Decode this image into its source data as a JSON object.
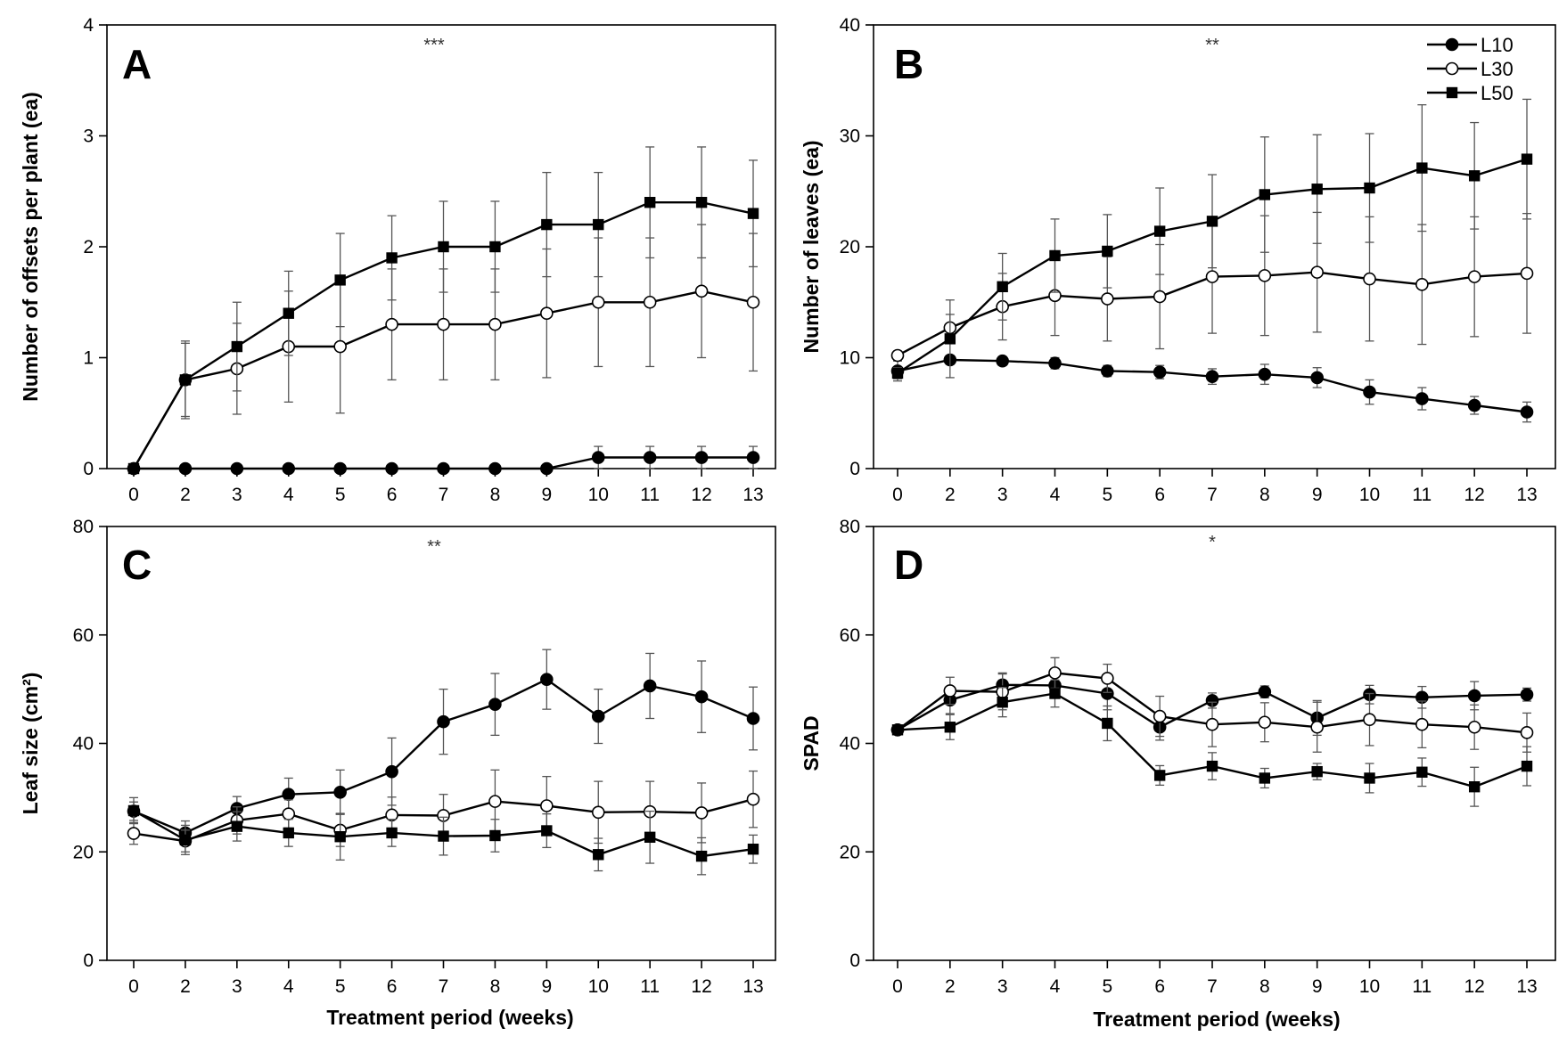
{
  "figure": {
    "xlabel": "Treatment period (weeks)",
    "legend": [
      {
        "name": "L10",
        "marker": "filled-circle"
      },
      {
        "name": "L30",
        "marker": "open-circle"
      },
      {
        "name": "L50",
        "marker": "filled-square"
      }
    ]
  },
  "chart_data": [
    {
      "type": "line",
      "panel": "A",
      "significance": "***",
      "xlabel": "Treatment period (weeks)",
      "ylabel": "Number of offsets per plant (ea)",
      "categories": [
        "0",
        "2",
        "3",
        "4",
        "5",
        "6",
        "7",
        "8",
        "9",
        "10",
        "11",
        "12",
        "13"
      ],
      "ylim": [
        0,
        4
      ],
      "yticks": [
        0,
        1,
        2,
        3,
        4
      ],
      "series": [
        {
          "name": "L10",
          "marker": "filled-circle",
          "values": [
            0,
            0,
            0,
            0,
            0,
            0,
            0,
            0,
            0,
            0.1,
            0.1,
            0.1,
            0.1
          ],
          "errors": [
            0,
            0,
            0,
            0,
            0,
            0,
            0,
            0,
            0,
            0.1,
            0.1,
            0.1,
            0.1
          ]
        },
        {
          "name": "L30",
          "marker": "open-circle",
          "values": [
            0,
            0.8,
            0.9,
            1.1,
            1.1,
            1.3,
            1.3,
            1.3,
            1.4,
            1.5,
            1.5,
            1.6,
            1.5
          ],
          "errors": [
            0,
            0.33,
            0.41,
            0.5,
            0.6,
            0.5,
            0.5,
            0.5,
            0.58,
            0.58,
            0.58,
            0.6,
            0.62
          ]
        },
        {
          "name": "L50",
          "marker": "filled-square",
          "values": [
            0,
            0.8,
            1.1,
            1.4,
            1.7,
            1.9,
            2.0,
            2.0,
            2.2,
            2.2,
            2.4,
            2.4,
            2.3
          ],
          "errors": [
            0,
            0.35,
            0.4,
            0.38,
            0.42,
            0.38,
            0.41,
            0.41,
            0.47,
            0.47,
            0.5,
            0.5,
            0.48
          ]
        }
      ]
    },
    {
      "type": "line",
      "panel": "B",
      "significance": "**",
      "xlabel": "Treatment period (weeks)",
      "ylabel": "Number of leaves (ea)",
      "categories": [
        "0",
        "2",
        "3",
        "4",
        "5",
        "6",
        "7",
        "8",
        "9",
        "10",
        "11",
        "12",
        "13"
      ],
      "ylim": [
        0,
        40
      ],
      "yticks": [
        0,
        10,
        20,
        30,
        40
      ],
      "series": [
        {
          "name": "L10",
          "marker": "filled-circle",
          "values": [
            8.8,
            9.8,
            9.7,
            9.5,
            8.8,
            8.7,
            8.3,
            8.5,
            8.2,
            6.9,
            6.3,
            5.7,
            5.1
          ],
          "errors": [
            0.9,
            0.4,
            0.4,
            0.5,
            0.5,
            0.6,
            0.7,
            0.9,
            0.9,
            1.1,
            1.0,
            0.8,
            0.9
          ]
        },
        {
          "name": "L30",
          "marker": "open-circle",
          "values": [
            10.2,
            12.7,
            14.6,
            15.6,
            15.3,
            15.5,
            17.3,
            17.4,
            17.7,
            17.1,
            16.6,
            17.3,
            17.6
          ],
          "errors": [
            0.4,
            1.2,
            3.0,
            3.6,
            3.8,
            4.7,
            5.1,
            5.4,
            5.4,
            5.6,
            5.4,
            5.4,
            5.4
          ]
        },
        {
          "name": "L50",
          "marker": "filled-square",
          "values": [
            8.6,
            11.7,
            16.4,
            19.2,
            19.6,
            21.4,
            22.3,
            24.7,
            25.2,
            25.3,
            27.1,
            26.4,
            27.9
          ],
          "errors": [
            0.5,
            3.5,
            3.0,
            3.3,
            3.3,
            3.9,
            4.2,
            5.2,
            4.9,
            4.9,
            5.7,
            4.8,
            5.4
          ]
        }
      ]
    },
    {
      "type": "line",
      "panel": "C",
      "significance": "**",
      "xlabel": "Treatment period (weeks)",
      "ylabel": "Leaf size (cm²)",
      "categories": [
        "0",
        "2",
        "3",
        "4",
        "5",
        "6",
        "7",
        "8",
        "9",
        "10",
        "11",
        "12",
        "13"
      ],
      "ylim": [
        0,
        80
      ],
      "yticks": [
        0,
        20,
        40,
        60,
        80
      ],
      "series": [
        {
          "name": "L10",
          "marker": "filled-circle",
          "values": [
            27.5,
            23.5,
            28.0,
            30.6,
            31.0,
            34.8,
            44.0,
            47.2,
            51.8,
            45.0,
            50.6,
            48.6,
            44.6
          ],
          "errors": [
            1.7,
            2.2,
            2.2,
            3.0,
            4.1,
            6.2,
            6.0,
            5.7,
            5.5,
            5.0,
            6.0,
            6.6,
            5.8
          ]
        },
        {
          "name": "L30",
          "marker": "open-circle",
          "values": [
            23.4,
            22.0,
            25.8,
            27.0,
            24.0,
            26.8,
            26.7,
            29.3,
            28.5,
            27.3,
            27.4,
            27.2,
            29.7
          ],
          "errors": [
            2.0,
            2.0,
            2.5,
            2.6,
            3.0,
            3.3,
            3.9,
            5.8,
            5.4,
            5.7,
            5.6,
            5.5,
            5.2
          ]
        },
        {
          "name": "L50",
          "marker": "filled-square",
          "values": [
            27.6,
            22.2,
            24.7,
            23.5,
            22.8,
            23.5,
            22.9,
            23.0,
            23.9,
            19.5,
            22.7,
            19.2,
            20.5
          ],
          "errors": [
            2.4,
            2.7,
            2.7,
            2.5,
            4.3,
            2.5,
            3.5,
            3.0,
            3.1,
            3.0,
            4.8,
            3.4,
            2.6
          ]
        }
      ]
    },
    {
      "type": "line",
      "panel": "D",
      "significance": "*",
      "xlabel": "Treatment period (weeks)",
      "ylabel": "SPAD",
      "categories": [
        "0",
        "2",
        "3",
        "4",
        "5",
        "6",
        "7",
        "8",
        "9",
        "10",
        "11",
        "12",
        "13"
      ],
      "ylim": [
        0,
        80
      ],
      "yticks": [
        0,
        20,
        40,
        60,
        80
      ],
      "series": [
        {
          "name": "L10",
          "marker": "filled-circle",
          "values": [
            42.5,
            48.0,
            50.8,
            50.7,
            49.2,
            43.0,
            47.9,
            49.5,
            44.7,
            49.0,
            48.5,
            48.8,
            49.0
          ],
          "errors": [
            0.5,
            2.5,
            2.2,
            2.2,
            3.0,
            2.4,
            1.4,
            1.1,
            3.2,
            1.7,
            2.0,
            2.6,
            1.2
          ]
        },
        {
          "name": "L30",
          "marker": "open-circle",
          "values": [
            42.5,
            49.7,
            49.5,
            53.0,
            52.0,
            45.0,
            43.5,
            43.9,
            43.0,
            44.4,
            43.5,
            43.0,
            42.0
          ],
          "errors": [
            0.5,
            2.5,
            3.3,
            2.8,
            2.6,
            3.7,
            4.1,
            3.6,
            4.6,
            4.8,
            4.3,
            4.1,
            3.6
          ]
        },
        {
          "name": "L50",
          "marker": "filled-square",
          "values": [
            42.5,
            43.0,
            47.6,
            49.2,
            43.7,
            34.1,
            35.8,
            33.6,
            34.8,
            33.6,
            34.7,
            32.0,
            35.8
          ],
          "errors": [
            0.5,
            2.3,
            2.7,
            2.5,
            3.2,
            1.8,
            2.5,
            1.8,
            1.5,
            2.7,
            2.6,
            3.6,
            3.6
          ]
        }
      ]
    }
  ]
}
